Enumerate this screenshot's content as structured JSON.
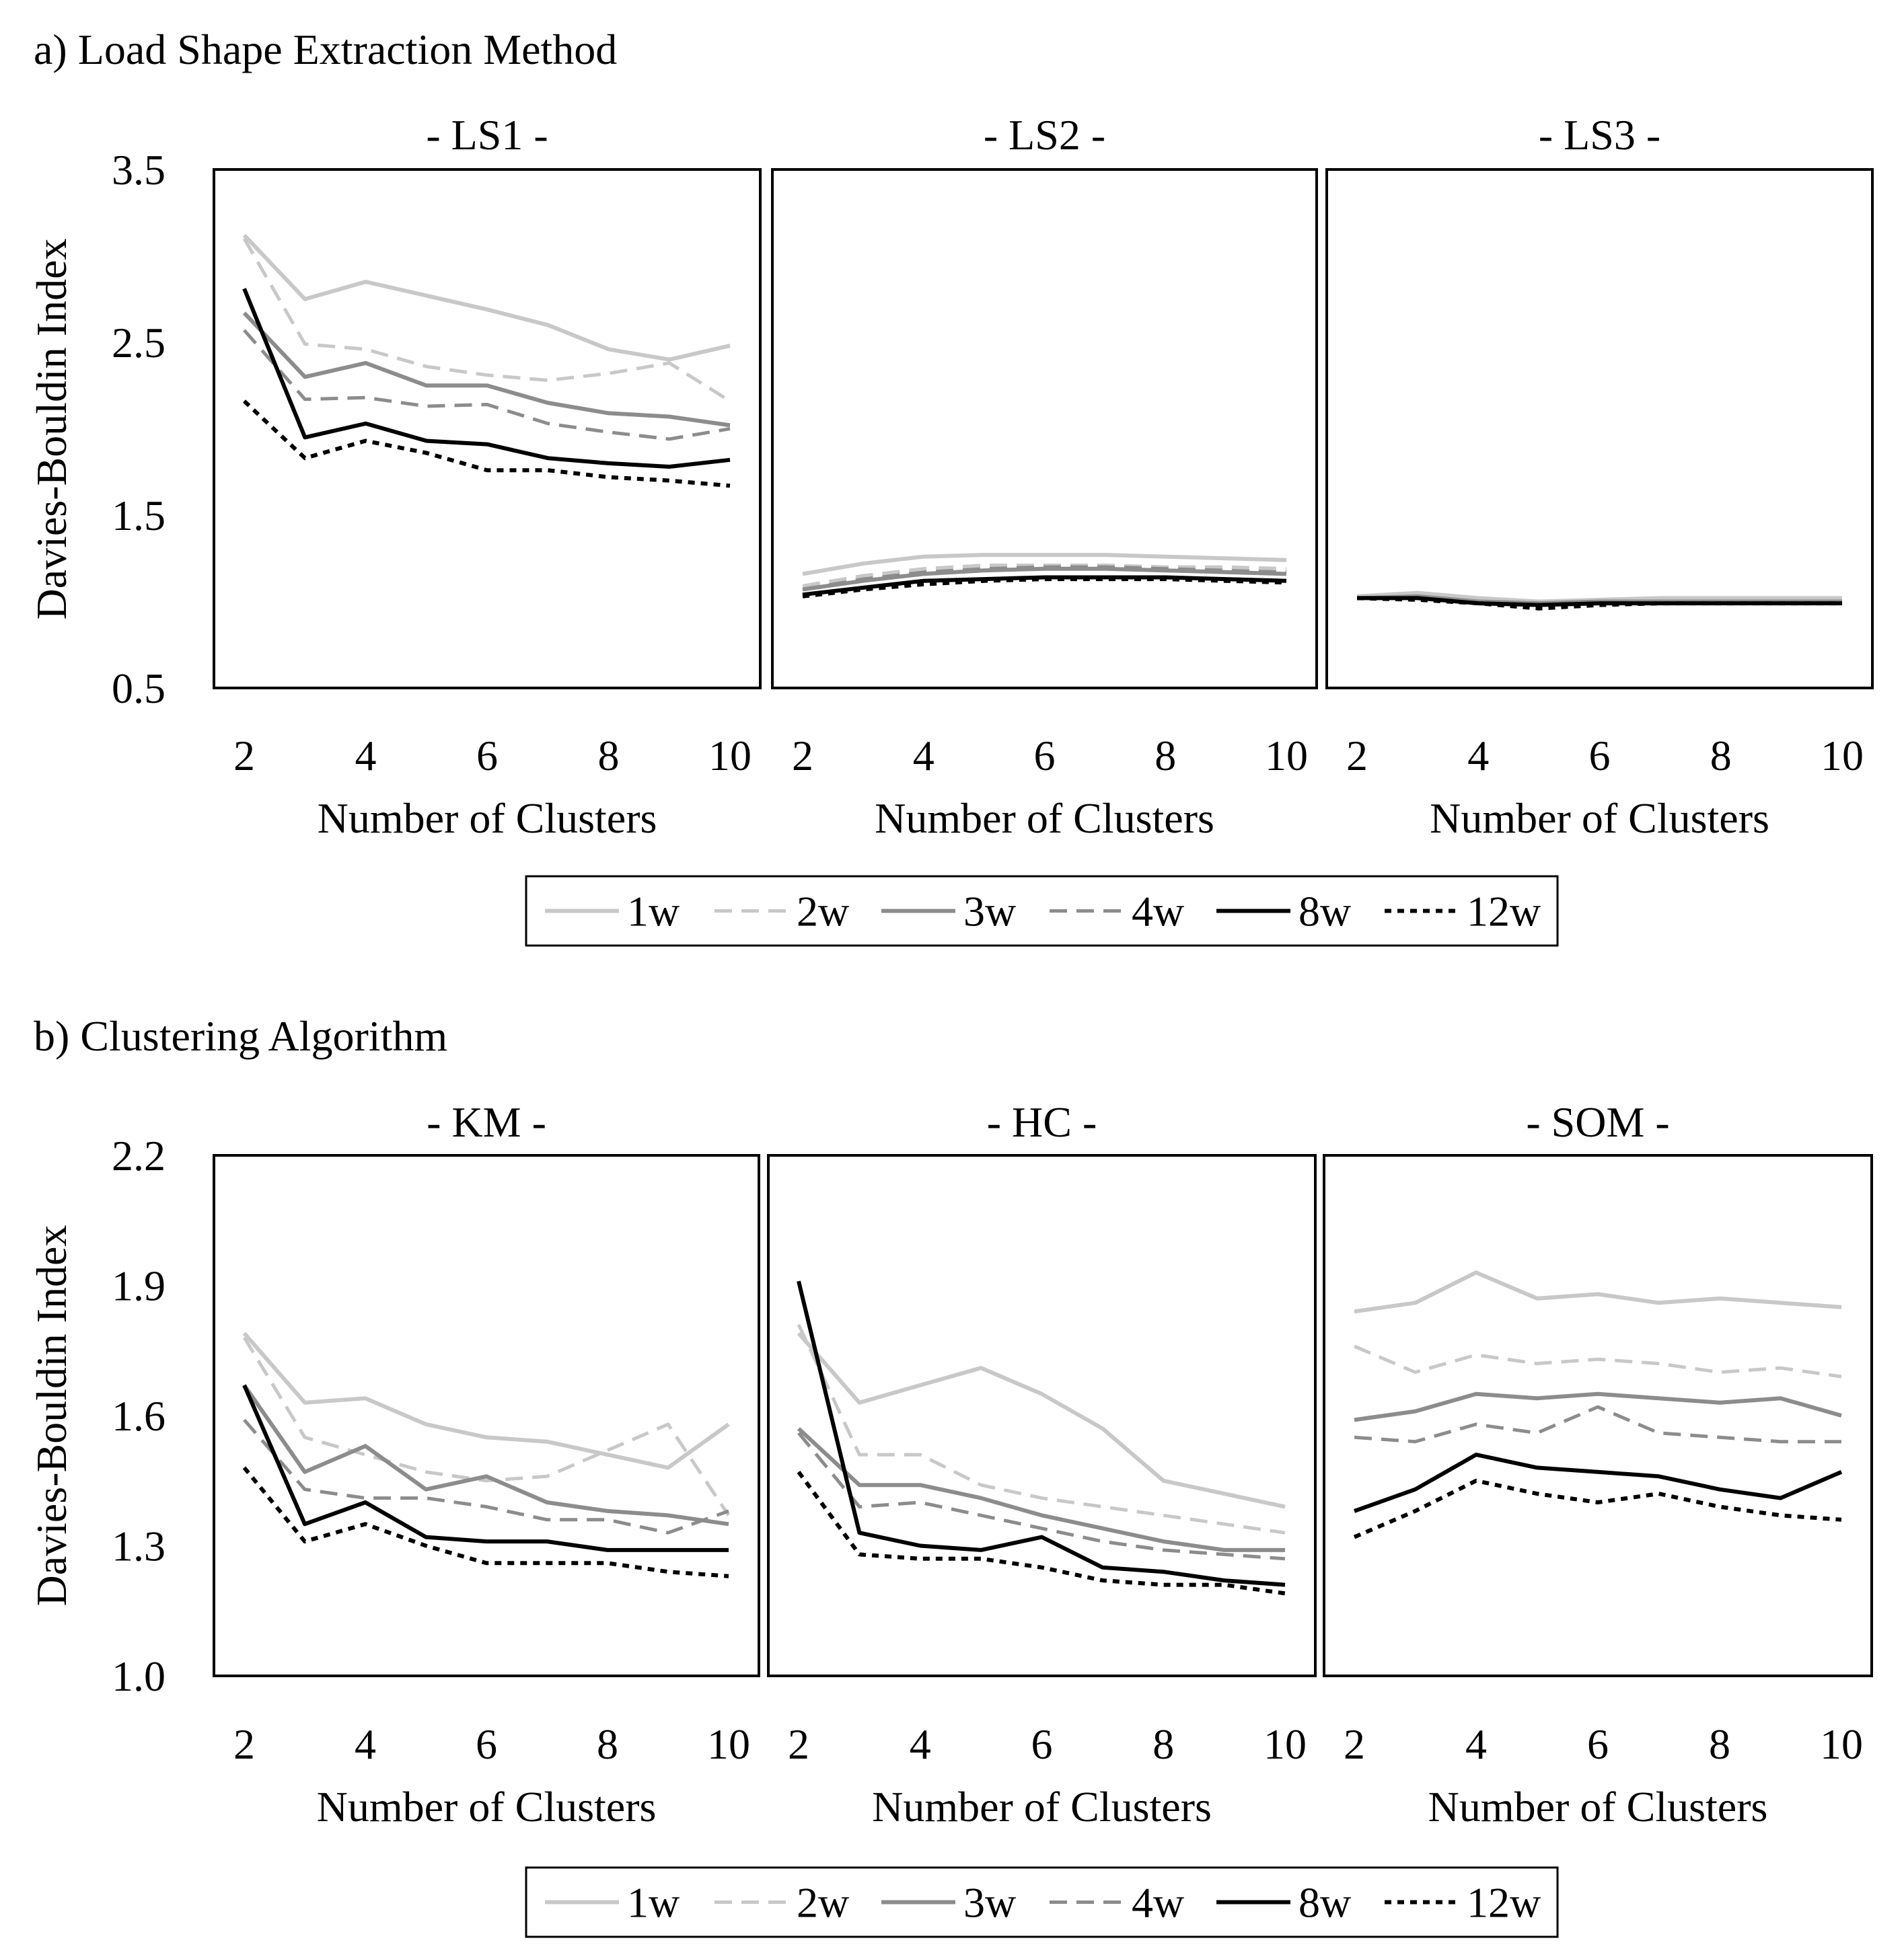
{
  "x_values": [
    2,
    3,
    4,
    5,
    6,
    7,
    8,
    9,
    10
  ],
  "legend": [
    {
      "label": "1w",
      "color": "#c8c8c8",
      "dash": "solid",
      "width": 6
    },
    {
      "label": "2w",
      "color": "#c8c8c8",
      "dash": "dashed",
      "width": 5
    },
    {
      "label": "3w",
      "color": "#8c8c8c",
      "dash": "solid",
      "width": 6
    },
    {
      "label": "4w",
      "color": "#8c8c8c",
      "dash": "dashed",
      "width": 5
    },
    {
      "label": "8w",
      "color": "#000000",
      "dash": "solid",
      "width": 6
    },
    {
      "label": "12w",
      "color": "#000000",
      "dash": "dotted",
      "width": 6
    }
  ],
  "sections": [
    {
      "title": "a) Load Shape Extraction Method",
      "ylabel": "Davies-Bouldin Index",
      "ylim": [
        0.5,
        3.5
      ],
      "yticks": [
        "0.5",
        "1.5",
        "2.5",
        "3.5"
      ],
      "xlabel": "Number of Clusters",
      "xticks": [
        "2",
        "4",
        "6",
        "8",
        "10"
      ],
      "panels": [
        {
          "title": "- LS1 -",
          "series": [
            {
              "name": "1w",
              "values": [
                3.12,
                2.75,
                2.85,
                2.77,
                2.69,
                2.6,
                2.46,
                2.4,
                2.48
              ]
            },
            {
              "name": "2w",
              "values": [
                3.1,
                2.49,
                2.46,
                2.36,
                2.31,
                2.28,
                2.32,
                2.38,
                2.16
              ]
            },
            {
              "name": "3w",
              "values": [
                2.67,
                2.3,
                2.38,
                2.25,
                2.25,
                2.15,
                2.09,
                2.07,
                2.02
              ]
            },
            {
              "name": "4w",
              "values": [
                2.57,
                2.17,
                2.18,
                2.13,
                2.14,
                2.03,
                1.98,
                1.94,
                2.0
              ]
            },
            {
              "name": "8w",
              "values": [
                2.81,
                1.95,
                2.03,
                1.93,
                1.91,
                1.83,
                1.8,
                1.78,
                1.82
              ]
            },
            {
              "name": "12w",
              "values": [
                2.16,
                1.83,
                1.93,
                1.86,
                1.76,
                1.76,
                1.72,
                1.7,
                1.67
              ]
            }
          ]
        },
        {
          "title": "- LS2 -",
          "series": [
            {
              "name": "1w",
              "values": [
                1.16,
                1.22,
                1.26,
                1.27,
                1.27,
                1.27,
                1.26,
                1.25,
                1.24
              ]
            },
            {
              "name": "2w",
              "values": [
                1.09,
                1.15,
                1.19,
                1.21,
                1.21,
                1.21,
                1.2,
                1.2,
                1.19
              ]
            },
            {
              "name": "3w",
              "values": [
                1.07,
                1.12,
                1.16,
                1.18,
                1.19,
                1.19,
                1.18,
                1.17,
                1.16
              ]
            },
            {
              "name": "4w",
              "values": [
                1.07,
                1.13,
                1.17,
                1.19,
                1.2,
                1.2,
                1.19,
                1.18,
                1.17
              ]
            },
            {
              "name": "8w",
              "values": [
                1.04,
                1.08,
                1.12,
                1.13,
                1.14,
                1.14,
                1.14,
                1.13,
                1.12
              ]
            },
            {
              "name": "12w",
              "values": [
                1.03,
                1.07,
                1.1,
                1.12,
                1.13,
                1.13,
                1.13,
                1.12,
                1.11
              ]
            }
          ]
        },
        {
          "title": "- LS3 -",
          "series": [
            {
              "name": "1w",
              "values": [
                1.03,
                1.05,
                1.02,
                1.0,
                1.01,
                1.02,
                1.02,
                1.02,
                1.02
              ]
            },
            {
              "name": "2w",
              "values": [
                1.03,
                1.04,
                1.01,
                0.99,
                1.0,
                1.01,
                1.01,
                1.01,
                1.01
              ]
            },
            {
              "name": "3w",
              "values": [
                1.02,
                1.03,
                1.0,
                0.99,
                1.0,
                1.0,
                1.0,
                1.0,
                1.0
              ]
            },
            {
              "name": "4w",
              "values": [
                1.02,
                1.02,
                1.0,
                0.98,
                0.99,
                1.0,
                1.0,
                1.0,
                1.0
              ]
            },
            {
              "name": "8w",
              "values": [
                1.02,
                1.02,
                0.99,
                0.98,
                0.99,
                0.99,
                0.99,
                0.99,
                0.99
              ]
            },
            {
              "name": "12w",
              "values": [
                1.02,
                1.01,
                0.99,
                0.96,
                0.98,
                0.99,
                0.99,
                0.99,
                0.99
              ]
            }
          ]
        }
      ]
    },
    {
      "title": "b) Clustering Algorithm",
      "ylabel": "Davies-Bouldin Index",
      "ylim": [
        1.0,
        2.2
      ],
      "yticks": [
        "1.0",
        "1.3",
        "1.6",
        "1.9",
        "2.2"
      ],
      "xlabel": "Number of Clusters",
      "xticks": [
        "2",
        "4",
        "6",
        "8",
        "10"
      ],
      "panels": [
        {
          "title": "- KM -",
          "series": [
            {
              "name": "1w",
              "values": [
                1.79,
                1.63,
                1.64,
                1.58,
                1.55,
                1.54,
                1.51,
                1.48,
                1.58
              ]
            },
            {
              "name": "2w",
              "values": [
                1.78,
                1.55,
                1.51,
                1.47,
                1.45,
                1.46,
                1.52,
                1.58,
                1.37
              ]
            },
            {
              "name": "3w",
              "values": [
                1.67,
                1.47,
                1.53,
                1.43,
                1.46,
                1.4,
                1.38,
                1.37,
                1.35
              ]
            },
            {
              "name": "4w",
              "values": [
                1.59,
                1.43,
                1.41,
                1.41,
                1.39,
                1.36,
                1.36,
                1.33,
                1.38
              ]
            },
            {
              "name": "8w",
              "values": [
                1.67,
                1.35,
                1.4,
                1.32,
                1.31,
                1.31,
                1.29,
                1.29,
                1.29
              ]
            },
            {
              "name": "12w",
              "values": [
                1.48,
                1.31,
                1.35,
                1.3,
                1.26,
                1.26,
                1.26,
                1.24,
                1.23
              ]
            }
          ]
        },
        {
          "title": "- HC -",
          "series": [
            {
              "name": "1w",
              "values": [
                1.79,
                1.63,
                1.67,
                1.71,
                1.65,
                1.57,
                1.45,
                1.42,
                1.39
              ]
            },
            {
              "name": "2w",
              "values": [
                1.81,
                1.51,
                1.51,
                1.44,
                1.41,
                1.39,
                1.37,
                1.35,
                1.33
              ]
            },
            {
              "name": "3w",
              "values": [
                1.57,
                1.44,
                1.44,
                1.41,
                1.37,
                1.34,
                1.31,
                1.29,
                1.29
              ]
            },
            {
              "name": "4w",
              "values": [
                1.56,
                1.39,
                1.4,
                1.37,
                1.34,
                1.31,
                1.29,
                1.28,
                1.27
              ]
            },
            {
              "name": "8w",
              "values": [
                1.91,
                1.33,
                1.3,
                1.29,
                1.32,
                1.25,
                1.24,
                1.22,
                1.21
              ]
            },
            {
              "name": "12w",
              "values": [
                1.47,
                1.28,
                1.27,
                1.27,
                1.25,
                1.22,
                1.21,
                1.21,
                1.19
              ]
            }
          ]
        },
        {
          "title": "- SOM -",
          "series": [
            {
              "name": "1w",
              "values": [
                1.84,
                1.86,
                1.93,
                1.87,
                1.88,
                1.86,
                1.87,
                1.86,
                1.85
              ]
            },
            {
              "name": "2w",
              "values": [
                1.76,
                1.7,
                1.74,
                1.72,
                1.73,
                1.72,
                1.7,
                1.71,
                1.69
              ]
            },
            {
              "name": "3w",
              "values": [
                1.59,
                1.61,
                1.65,
                1.64,
                1.65,
                1.64,
                1.63,
                1.64,
                1.6
              ]
            },
            {
              "name": "4w",
              "values": [
                1.55,
                1.54,
                1.58,
                1.56,
                1.62,
                1.56,
                1.55,
                1.54,
                1.54
              ]
            },
            {
              "name": "8w",
              "values": [
                1.38,
                1.43,
                1.51,
                1.48,
                1.47,
                1.46,
                1.43,
                1.41,
                1.47
              ]
            },
            {
              "name": "12w",
              "values": [
                1.32,
                1.38,
                1.45,
                1.42,
                1.4,
                1.42,
                1.39,
                1.37,
                1.36
              ]
            }
          ]
        }
      ]
    }
  ],
  "chart_data": [
    {
      "type": "line",
      "title": "a) Load Shape Extraction Method",
      "xlabel": "Number of Clusters",
      "ylabel": "Davies-Bouldin Index",
      "ylim": [
        0.5,
        3.5
      ],
      "x": [
        2,
        3,
        4,
        5,
        6,
        7,
        8,
        9,
        10
      ],
      "panels": [
        "- LS1 -",
        "- LS2 -",
        "- LS3 -"
      ],
      "series_names": [
        "1w",
        "2w",
        "3w",
        "4w",
        "8w",
        "12w"
      ],
      "legend_position": "bottom-center"
    },
    {
      "type": "line",
      "title": "b) Clustering Algorithm",
      "xlabel": "Number of Clusters",
      "ylabel": "Davies-Bouldin Index",
      "ylim": [
        1.0,
        2.2
      ],
      "x": [
        2,
        3,
        4,
        5,
        6,
        7,
        8,
        9,
        10
      ],
      "panels": [
        "- KM -",
        "- HC -",
        "- SOM -"
      ],
      "series_names": [
        "1w",
        "2w",
        "3w",
        "4w",
        "8w",
        "12w"
      ],
      "legend_position": "bottom-center"
    }
  ]
}
